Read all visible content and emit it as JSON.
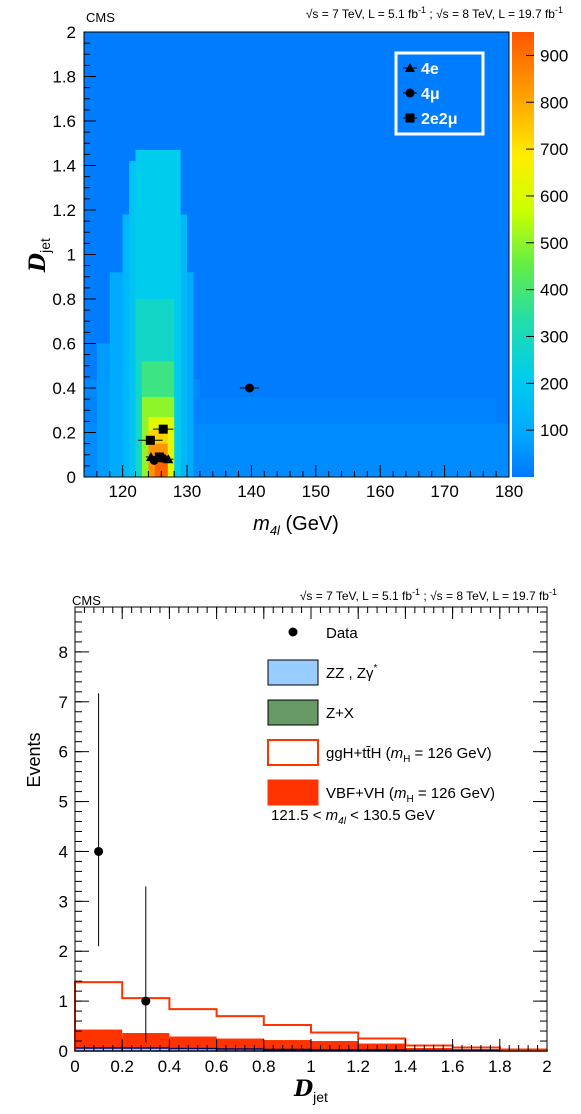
{
  "chart_data": [
    {
      "type": "heatmap",
      "experiment": "CMS",
      "lumi_parts": [
        "√s = 7 TeV, L = 5.1 fb",
        "-1",
        " ; √s = 8 TeV, L = 19.7 fb",
        "-1"
      ],
      "xlabel_main": "m",
      "xlabel_sub": "4l",
      "xlabel_unit": " (GeV)",
      "ylabel_main": "D",
      "ylabel_sub": "jet",
      "xlim": [
        114,
        180
      ],
      "ylim": [
        0,
        2
      ],
      "xticks": [
        "120",
        "130",
        "140",
        "150",
        "160",
        "170",
        "180"
      ],
      "yticks": [
        "0",
        "0.2",
        "0.4",
        "0.6",
        "0.8",
        "1",
        "1.2",
        "1.4",
        "1.6",
        "1.8",
        "2"
      ],
      "colorbar": {
        "range": [
          0,
          950
        ],
        "ticks": [
          "100",
          "200",
          "300",
          "400",
          "500",
          "600",
          "700",
          "800",
          "900"
        ]
      },
      "background_level": 10,
      "density": [
        {
          "x0": 114,
          "x1": 180,
          "y0": 0,
          "y1": 0.24,
          "v": 40
        },
        {
          "x0": 114,
          "x1": 178,
          "y0": 0.24,
          "y1": 0.36,
          "v": 22
        },
        {
          "x0": 114,
          "x1": 132,
          "y0": 0.36,
          "y1": 0.44,
          "v": 35
        },
        {
          "x0": 116,
          "x1": 131,
          "y0": 0,
          "y1": 0.6,
          "v": 70
        },
        {
          "x0": 118,
          "x1": 131,
          "y0": 0,
          "y1": 0.92,
          "v": 100
        },
        {
          "x0": 120,
          "x1": 130,
          "y0": 0,
          "y1": 1.18,
          "v": 140
        },
        {
          "x0": 121,
          "x1": 129,
          "y0": 0,
          "y1": 1.42,
          "v": 180
        },
        {
          "x0": 122,
          "x1": 129,
          "y0": 0,
          "y1": 1.47,
          "v": 210
        },
        {
          "x0": 122,
          "x1": 128,
          "y0": 0,
          "y1": 0.8,
          "v": 280
        },
        {
          "x0": 123,
          "x1": 128,
          "y0": 0,
          "y1": 0.52,
          "v": 380
        },
        {
          "x0": 123,
          "x1": 128,
          "y0": 0,
          "y1": 0.36,
          "v": 500
        },
        {
          "x0": 124,
          "x1": 128,
          "y0": 0,
          "y1": 0.27,
          "v": 620
        },
        {
          "x0": 124,
          "x1": 127,
          "y0": 0,
          "y1": 0.21,
          "v": 730
        },
        {
          "x0": 124,
          "x1": 127,
          "y0": 0,
          "y1": 0.15,
          "v": 840
        },
        {
          "x0": 125,
          "x1": 127,
          "y0": 0,
          "y1": 0.1,
          "v": 930
        }
      ],
      "legend": {
        "position": "top-right",
        "entries": [
          {
            "marker": "triangle",
            "label_main": "4e",
            "label_sub": ""
          },
          {
            "marker": "circle",
            "label_main": "4μ",
            "label_sub": ""
          },
          {
            "marker": "square",
            "label_main": "2e2μ",
            "label_sub": ""
          }
        ]
      },
      "points": [
        {
          "channel": "4e",
          "x": 124.4,
          "y": 0.09,
          "xerr": 0.8
        },
        {
          "channel": "4e",
          "x": 125.6,
          "y": 0.085,
          "xerr": 0.8
        },
        {
          "channel": "4e",
          "x": 127.1,
          "y": 0.08,
          "xerr": 0.8
        },
        {
          "channel": "4μ",
          "x": 139.7,
          "y": 0.4,
          "xerr": 1.5
        },
        {
          "channel": "4μ",
          "x": 124.9,
          "y": 0.075,
          "xerr": 0.5
        },
        {
          "channel": "4μ",
          "x": 126.2,
          "y": 0.085,
          "xerr": 0.5
        },
        {
          "channel": "2e2μ",
          "x": 126.3,
          "y": 0.215,
          "xerr": 1.6
        },
        {
          "channel": "2e2μ",
          "x": 124.3,
          "y": 0.165,
          "xerr": 1.9
        },
        {
          "channel": "2e2μ",
          "x": 125.7,
          "y": 0.09,
          "xerr": 1.1
        }
      ]
    },
    {
      "type": "bar",
      "experiment": "CMS",
      "lumi_parts": [
        "√s = 7 TeV, L = 5.1 fb",
        "-1",
        " ; √s = 8 TeV, L = 19.7 fb",
        "-1"
      ],
      "xlabel_main": "D",
      "xlabel_sub": "jet",
      "ylabel": "Events",
      "xlim": [
        0,
        2
      ],
      "ylim": [
        0,
        8.9
      ],
      "xticks": [
        "0",
        "0.2",
        "0.4",
        "0.6",
        "0.8",
        "1",
        "1.2",
        "1.4",
        "1.6",
        "1.8",
        "2"
      ],
      "yticks": [
        "0",
        "1",
        "2",
        "3",
        "4",
        "5",
        "6",
        "7",
        "8"
      ],
      "bin_edges": [
        0,
        0.2,
        0.4,
        0.6,
        0.8,
        1.0,
        1.2,
        1.4,
        1.6,
        1.8,
        2.0
      ],
      "series": [
        {
          "key": "zz",
          "values": [
            0.06,
            0.06,
            0.05,
            0.04,
            0.03,
            0.02,
            0.02,
            0.01,
            0.01,
            0.01
          ]
        },
        {
          "key": "zx",
          "values": [
            0.02,
            0.02,
            0.02,
            0.01,
            0.01,
            0.01,
            0.0,
            0.0,
            0.0,
            0.0
          ]
        },
        {
          "key": "ggh",
          "values": [
            0.95,
            0.7,
            0.55,
            0.45,
            0.3,
            0.17,
            0.1,
            0.05,
            0.03,
            0.01
          ]
        },
        {
          "key": "vbf",
          "values": [
            0.35,
            0.28,
            0.22,
            0.2,
            0.18,
            0.17,
            0.13,
            0.05,
            0.03,
            0.01
          ]
        }
      ],
      "colors": {
        "zz": "#99ccff",
        "zx": "#669966",
        "ggh": "#ff3300",
        "vbf": "#ff3300",
        "edge_zz": "#000066"
      },
      "data": [
        {
          "x": 0.1,
          "y": 4,
          "low": 2.1,
          "high": 7.17
        },
        {
          "x": 0.3,
          "y": 1,
          "low": 0.17,
          "high": 3.3
        }
      ],
      "legend": {
        "position": "top-right",
        "entries": [
          {
            "key": "data",
            "label_main": "Data"
          },
          {
            "key": "zz",
            "label_main": "ZZ , Zγ",
            "label_sup": "*"
          },
          {
            "key": "zx",
            "label_main": "Z+X"
          },
          {
            "key": "ggh",
            "label_main": "ggH+tt̄H (",
            "label_italic": "m",
            "label_sub": "H",
            "label_rest": " = 126 GeV)"
          },
          {
            "key": "vbf",
            "label_main": "VBF+VH (",
            "label_italic": "m",
            "label_sub": "H",
            "label_rest": " = 126 GeV)"
          }
        ]
      },
      "annotation": {
        "pre": "121.5 < ",
        "italic": "m",
        "sub": "4l",
        "post": " < 130.5 GeV"
      }
    }
  ]
}
